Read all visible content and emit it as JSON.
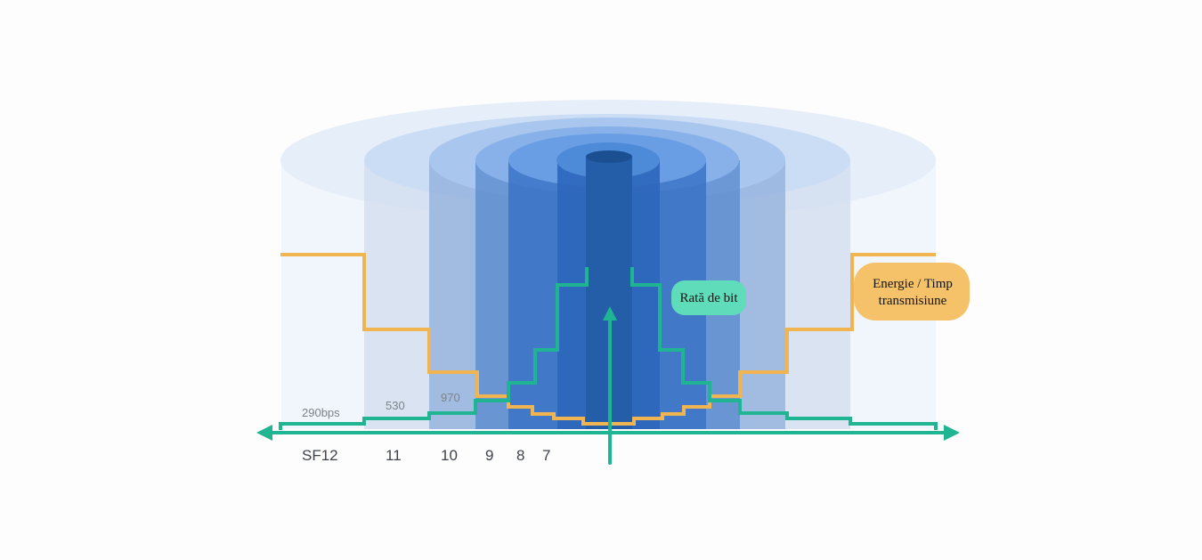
{
  "colors": {
    "bit_rate": "#1fb592",
    "energy": "#f0b450",
    "bit_rate_pill": "#5fdcba",
    "energy_pill": "#f5c26a"
  },
  "spreading_factors": [
    "SF12",
    "11",
    "10",
    "9",
    "8",
    "7"
  ],
  "bit_rates": [
    "290bps",
    "530",
    "970"
  ],
  "legend": {
    "bit_rate": "Rată de bit",
    "energy_line1": "Energie / Timp",
    "energy_line2": "transmisiune"
  }
}
